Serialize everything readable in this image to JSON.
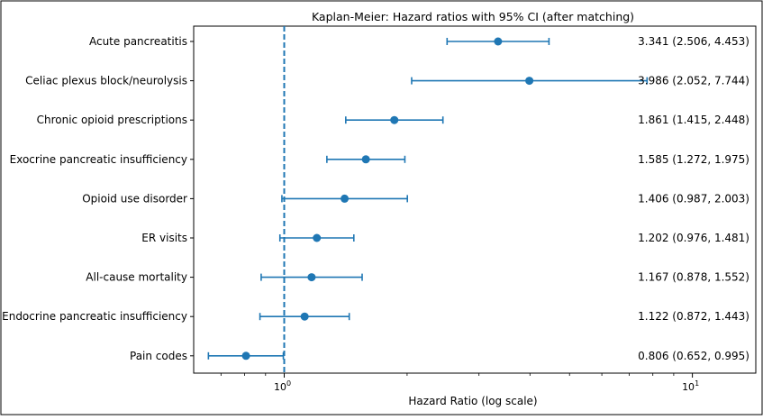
{
  "chart_data": {
    "type": "forest",
    "title": "Kaplan-Meier: Hazard ratios with 95% CI (after matching)",
    "xlabel": "Hazard Ratio (log scale)",
    "ylabel": "",
    "xscale": "log",
    "xlim": [
      0.6,
      14.3
    ],
    "xticks": [
      {
        "value": 1,
        "label_base": "10",
        "label_exp": "0"
      },
      {
        "value": 10,
        "label_base": "10",
        "label_exp": "1"
      }
    ],
    "reference_line": {
      "value": 1,
      "style": "dashed"
    },
    "grid": false,
    "marker_color": "#1f77b4",
    "categories": [
      "Acute pancreatitis",
      "Celiac plexus block/neurolysis",
      "Chronic opioid prescriptions",
      "Exocrine pancreatic insufficiency",
      "Opioid use disorder",
      "ER visits",
      "All-cause mortality",
      "Endocrine pancreatic insufficiency",
      "Pain codes"
    ],
    "estimates": [
      3.341,
      3.986,
      1.861,
      1.585,
      1.406,
      1.202,
      1.167,
      1.122,
      0.806
    ],
    "ci_low": [
      2.506,
      2.052,
      1.415,
      1.272,
      0.987,
      0.976,
      0.878,
      0.872,
      0.652
    ],
    "ci_high": [
      4.453,
      7.744,
      2.448,
      1.975,
      2.003,
      1.481,
      1.552,
      1.443,
      0.995
    ],
    "value_labels": [
      "3.341 (2.506, 4.453)",
      "3.986 (2.052, 7.744)",
      "1.861 (1.415, 2.448)",
      "1.585 (1.272, 1.975)",
      "1.406 (0.987, 2.003)",
      "1.202 (0.976, 1.481)",
      "1.167 (0.878, 1.552)",
      "1.122 (0.872, 1.443)",
      "0.806 (0.652, 0.995)"
    ]
  }
}
